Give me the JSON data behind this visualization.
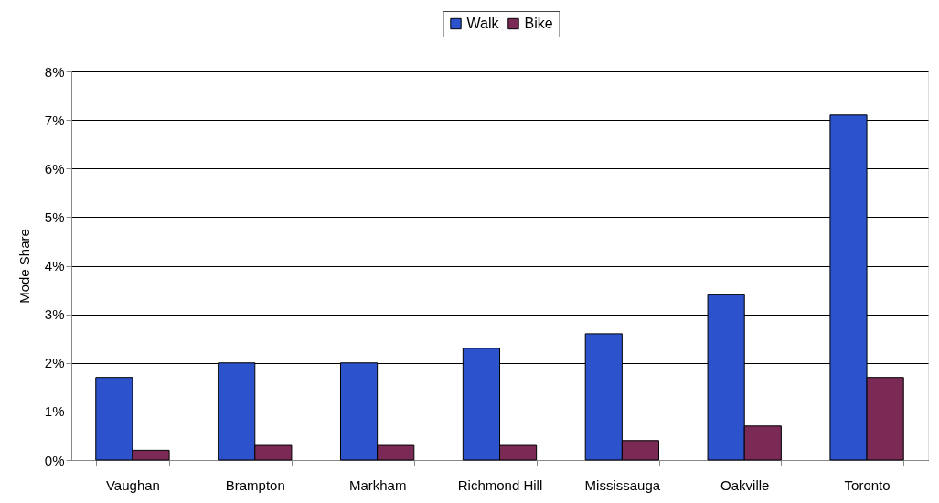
{
  "chart_data": {
    "type": "bar",
    "ylabel": "Mode Share",
    "categories": [
      "Vaughan",
      "Brampton",
      "Markham",
      "Richmond Hill",
      "Mississauga",
      "Oakville",
      "Toronto"
    ],
    "series": [
      {
        "name": "Walk",
        "color": "#2c52cc",
        "values": [
          1.7,
          2.0,
          2.0,
          2.3,
          2.6,
          3.4,
          7.1
        ]
      },
      {
        "name": "Bike",
        "color": "#7a2a55",
        "values": [
          0.2,
          0.3,
          0.3,
          0.3,
          0.4,
          0.7,
          1.7
        ]
      }
    ],
    "ylim": [
      0,
      8
    ],
    "yticks": [
      {
        "value": 0,
        "label": "0%"
      },
      {
        "value": 1,
        "label": "1%"
      },
      {
        "value": 2,
        "label": "2%"
      },
      {
        "value": 3,
        "label": "3%"
      },
      {
        "value": 4,
        "label": "4%"
      },
      {
        "value": 5,
        "label": "5%"
      },
      {
        "value": 6,
        "label": "6%"
      },
      {
        "value": 7,
        "label": "7%"
      },
      {
        "value": 8,
        "label": "8%"
      }
    ],
    "grid": "y",
    "legend": "top"
  }
}
